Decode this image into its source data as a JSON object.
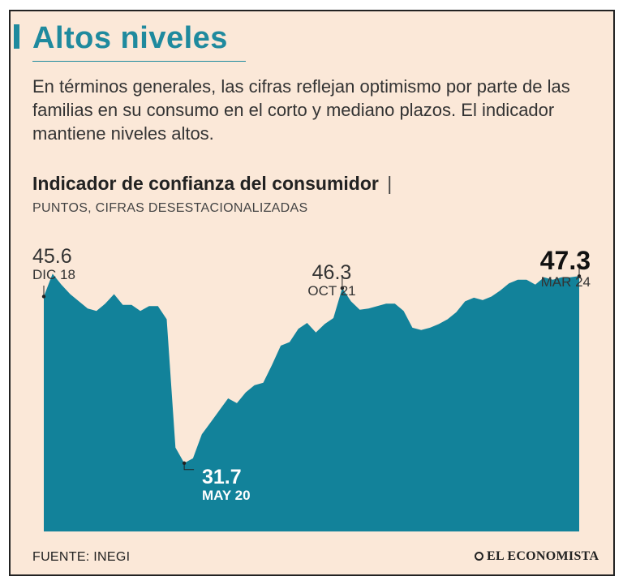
{
  "header": {
    "title": "Altos niveles",
    "subtitle": "En términos generales, las cifras reflejan optimismo por parte de las familias en su consumo en el corto y mediano plazos. El indicador mantiene niveles altos."
  },
  "colors": {
    "accent": "#1f8a9e",
    "background": "#fbe8d8",
    "area": "#12829a"
  },
  "chart_data": {
    "type": "area",
    "title": "Indicador de confianza del consumidor",
    "title_separator": "|",
    "units_label": "PUNTOS, CIFRAS DESESTACIONALIZADAS",
    "ylim": [
      26,
      48
    ],
    "x_range": [
      "DIC 18",
      "MAR 24"
    ],
    "values": [
      45.6,
      47.5,
      46.6,
      45.8,
      45.2,
      44.6,
      44.4,
      45.0,
      45.8,
      44.9,
      44.9,
      44.4,
      44.8,
      44.8,
      43.7,
      33.0,
      31.7,
      32.1,
      34.1,
      35.1,
      36.1,
      37.1,
      36.7,
      37.6,
      38.2,
      38.4,
      39.9,
      41.5,
      41.8,
      42.9,
      43.4,
      42.6,
      43.3,
      43.8,
      46.3,
      45.2,
      44.5,
      44.6,
      44.8,
      45.0,
      45.0,
      44.4,
      43.0,
      42.8,
      43.0,
      43.3,
      43.7,
      44.3,
      45.2,
      45.5,
      45.3,
      45.6,
      46.1,
      46.7,
      47.0,
      47.0,
      46.6,
      47.2,
      47.0,
      47.2,
      47.2,
      47.3
    ],
    "annotations": [
      {
        "index": 0,
        "value": "45.6",
        "date": "DIC 18"
      },
      {
        "index": 16,
        "value": "31.7",
        "date": "MAY 20"
      },
      {
        "index": 34,
        "value": "46.3",
        "date": "OCT 21"
      },
      {
        "index": 61,
        "value": "47.3",
        "date": "MAR 24"
      }
    ]
  },
  "footer": {
    "source": "FUENTE: INEGI",
    "logo": "EL ECONOMISTA"
  }
}
